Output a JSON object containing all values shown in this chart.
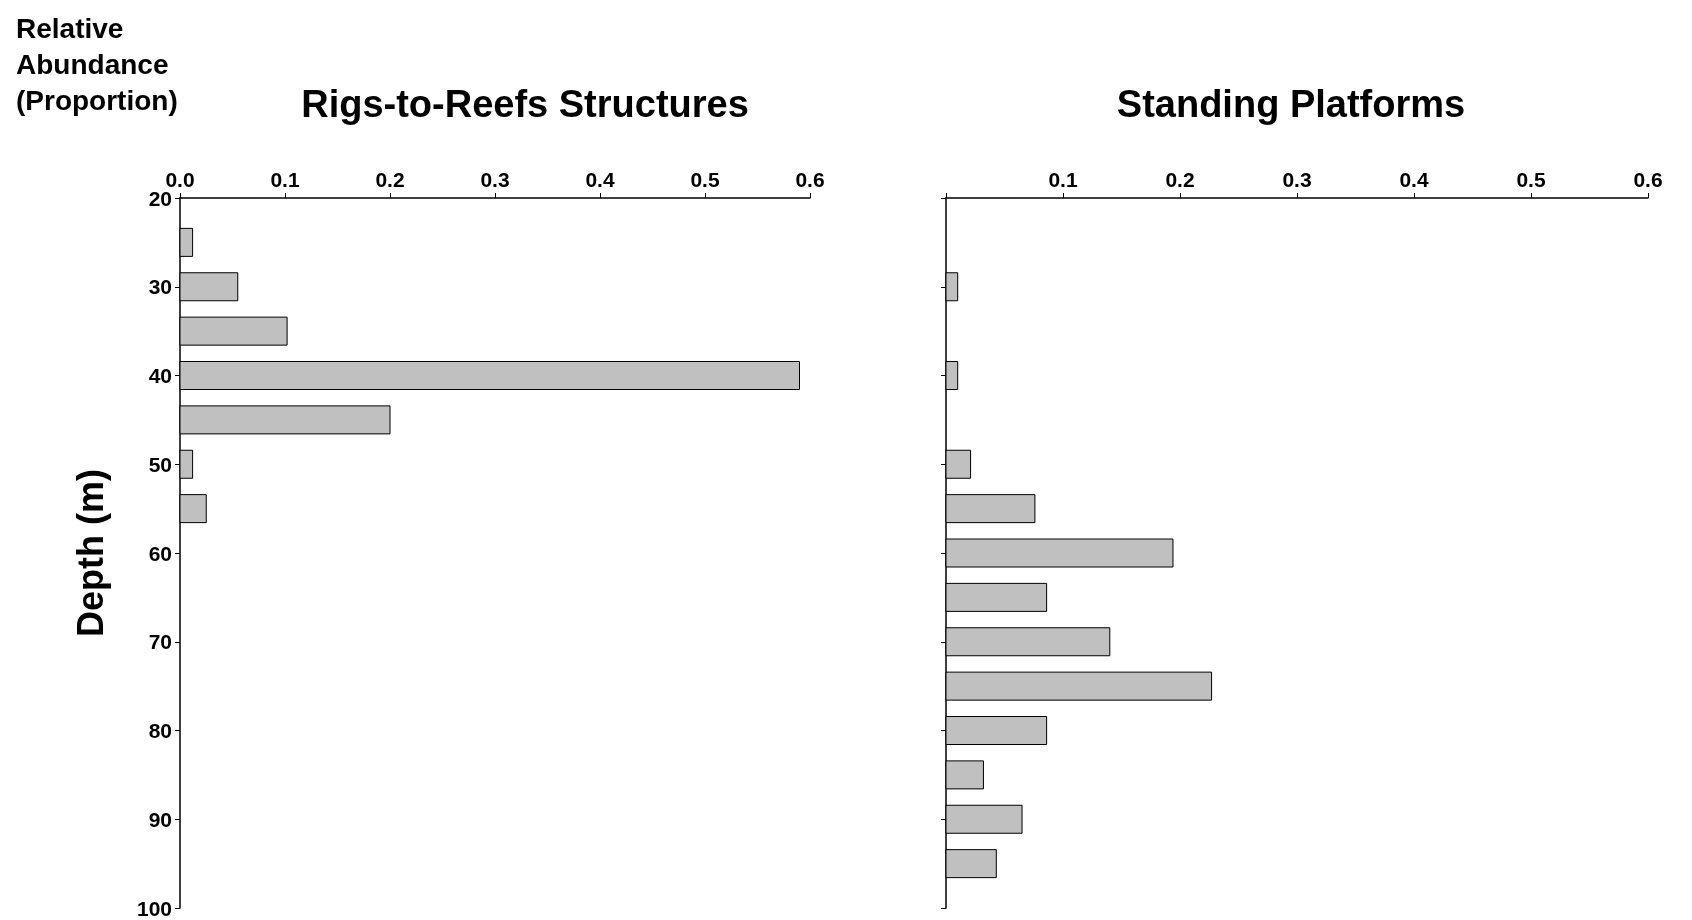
{
  "chart_data": [
    {
      "type": "bar",
      "orientation": "horizontal",
      "title": "Rigs-to-Reefs Structures",
      "xlabel": "Relative Abundance (Proportion)",
      "ylabel": "Depth (m)",
      "x": [
        25,
        30,
        35,
        40,
        45,
        50,
        55
      ],
      "values": [
        0.012,
        0.055,
        0.102,
        0.59,
        0.2,
        0.012,
        0.025
      ],
      "color": "#c0c0c0",
      "xlim": [
        0,
        0.6
      ],
      "xticks": [
        {
          "value": 0,
          "label": "0.0"
        },
        0.1,
        0.2,
        0.3,
        0.4,
        0.5,
        0.6
      ],
      "ylim": [
        100,
        20
      ],
      "yticks": [
        20,
        30,
        40,
        50,
        60,
        70,
        80,
        90,
        100
      ],
      "grid": false
    },
    {
      "type": "bar",
      "orientation": "horizontal",
      "title": "Standing Platforms",
      "x": [
        30,
        40,
        50,
        55,
        60,
        65,
        70,
        75,
        80,
        85,
        90,
        95
      ],
      "values": [
        0.01,
        0.01,
        0.021,
        0.076,
        0.194,
        0.086,
        0.14,
        0.227,
        0.086,
        0.032,
        0.065,
        0.043
      ],
      "color": "#c0c0c0",
      "xlim": [
        0,
        0.6
      ],
      "xticks": [
        {
          "value": 0,
          "label": null
        },
        0.1,
        0.2,
        0.3,
        0.4,
        0.5,
        0.6
      ],
      "ylim": [
        100,
        20
      ],
      "yticks": [
        20,
        30,
        40,
        50,
        60,
        70,
        80,
        90,
        100
      ],
      "tick_labels": "x",
      "grid": false
    }
  ]
}
